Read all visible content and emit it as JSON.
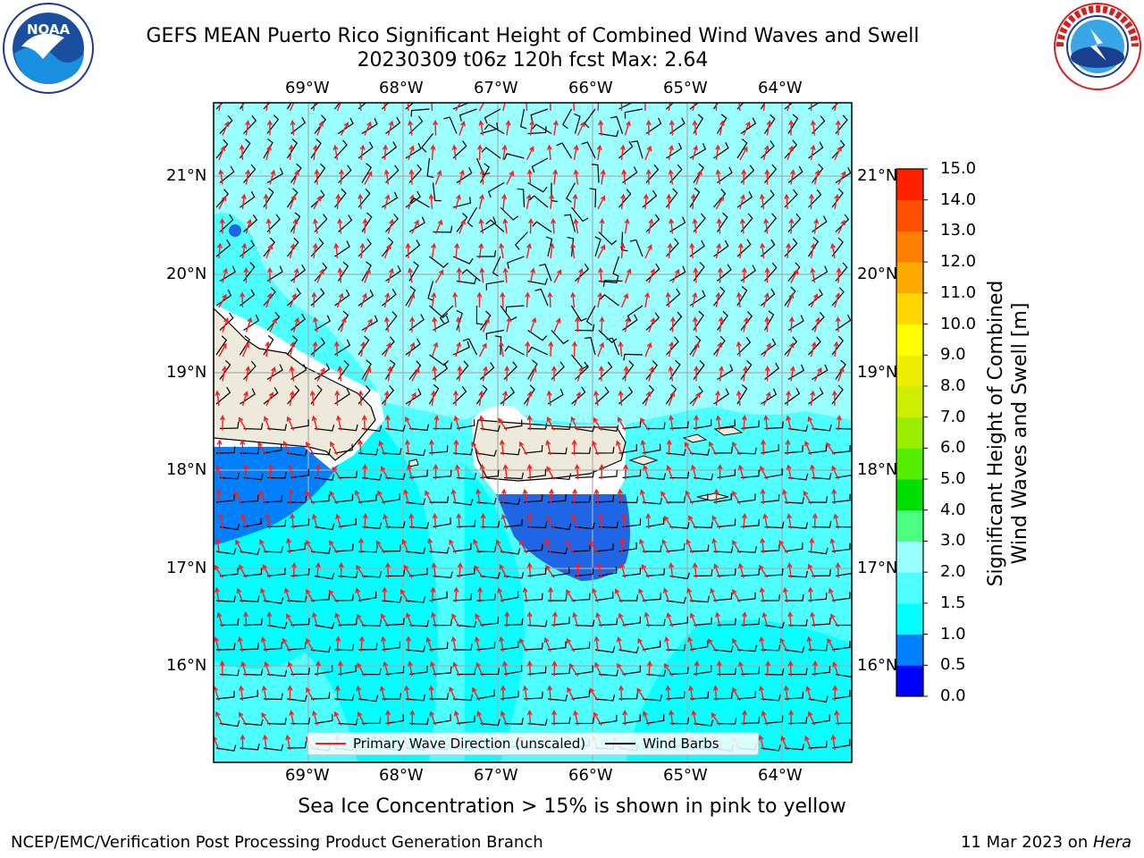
{
  "header": {
    "title_line1": "GEFS MEAN Puerto Rico Significant Height of Combined Wind Waves and Swell",
    "title_line2": "20230309 t06z 120h fcst   Max: 2.64"
  },
  "logos": {
    "left": "noaa-logo",
    "right": "nws-logo"
  },
  "map": {
    "lon_ticks": [
      "69°W",
      "68°W",
      "67°W",
      "66°W",
      "65°W",
      "64°W"
    ],
    "lat_ticks": [
      "21°N",
      "20°N",
      "19°N",
      "18°N",
      "17°N",
      "16°N"
    ],
    "land_color": "#eeeadb",
    "background_color": "#9bffff"
  },
  "legend": {
    "wave_label": "Primary Wave Direction (unscaled)",
    "barb_label": "Wind Barbs",
    "wave_color": "#ff1a1a",
    "barb_color": "#000000"
  },
  "colorbar": {
    "label_line1": "Significant Height of Combined",
    "label_line2": "Wind Waves and Swell [m]",
    "ticks": [
      "0.0",
      "0.5",
      "1.0",
      "1.5",
      "2.0",
      "3.0",
      "4.0",
      "5.0",
      "6.0",
      "7.0",
      "8.0",
      "9.0",
      "10.0",
      "11.0",
      "12.0",
      "13.0",
      "14.0",
      "15.0"
    ],
    "colors": [
      "#0000ff",
      "#0080ff",
      "#00ffff",
      "#4dffff",
      "#99ffff",
      "#4dff80",
      "#00dd00",
      "#55ee00",
      "#99ee00",
      "#ccee00",
      "#eeee00",
      "#ffff00",
      "#ffd700",
      "#ffaa00",
      "#ff7f00",
      "#ff5000",
      "#ff2000"
    ]
  },
  "notes": {
    "sea_ice": "Sea Ice Concentration > 15% is shown in pink to yellow"
  },
  "footer": {
    "left": "NCEP/EMC/Verification Post Processing Product Generation Branch",
    "right_date": "11 Mar 2023 on ",
    "right_machine": "Hera"
  }
}
